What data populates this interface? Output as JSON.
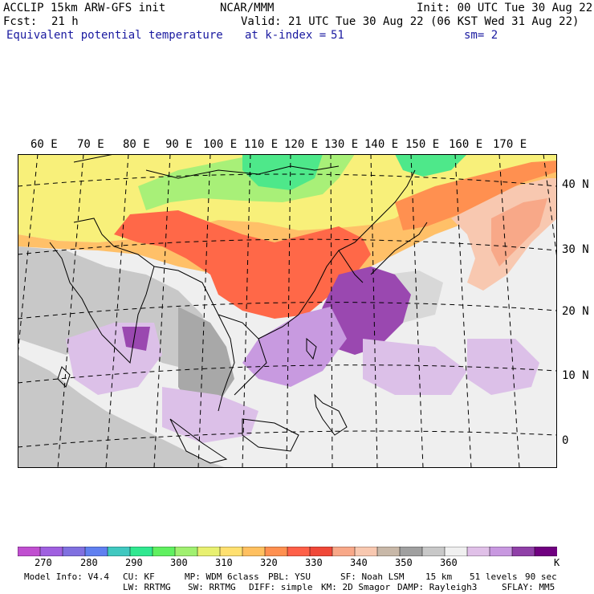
{
  "header": {
    "model": "ACCLIP 15km ARW-GFS init",
    "org": "NCAR/MMM",
    "init": "Init: 00 UTC Tue 30 Aug 22",
    "fcst_label": "Fcst:",
    "fcst_value": "21 h",
    "valid": "Valid: 21 UTC Tue 30 Aug 22 (06 KST Wed 31 Aug 22)",
    "field": "Equivalent potential temperature",
    "level": "at k-index =",
    "level_value": "51",
    "smooth": "sm= 2"
  },
  "map": {
    "lon_labels": [
      "60 E",
      "70 E",
      "80 E",
      "90 E",
      "100 E",
      "110 E",
      "120 E",
      "130 E",
      "140 E",
      "150 E",
      "160 E",
      "170 E"
    ],
    "lat_labels": [
      "40 N",
      "30 N",
      "20 N",
      "10 N",
      "0"
    ]
  },
  "colorbar": {
    "colors": [
      "#c04fd0",
      "#a060e0",
      "#8070e0",
      "#6080f0",
      "#40c8c0",
      "#30e890",
      "#60f060",
      "#a0f070",
      "#e8f070",
      "#ffe070",
      "#ffc060",
      "#ff9050",
      "#ff6048",
      "#f04838",
      "#f8a888",
      "#f8c8b0",
      "#c8b8a8",
      "#a0a0a0",
      "#c8c8c8",
      "#f0f0f0",
      "#e0c0e8",
      "#c898e0",
      "#9040a8",
      "#700080"
    ],
    "labels": [
      "270",
      "280",
      "290",
      "300",
      "310",
      "320",
      "330",
      "340",
      "350",
      "360"
    ],
    "unit": "K"
  },
  "footer": {
    "line1": [
      "Model Info: V4.4",
      "CU: KF",
      "MP: WDM 6class",
      "PBL: YSU",
      "SF: Noah LSM",
      "15 km",
      "51 levels",
      "90 sec"
    ],
    "line2": [
      "LW: RRTMG",
      "SW: RRTMG",
      "DIFF: simple",
      "KM: 2D Smagor",
      "DAMP: Rayleigh3",
      "SFLAY: MM5"
    ]
  }
}
